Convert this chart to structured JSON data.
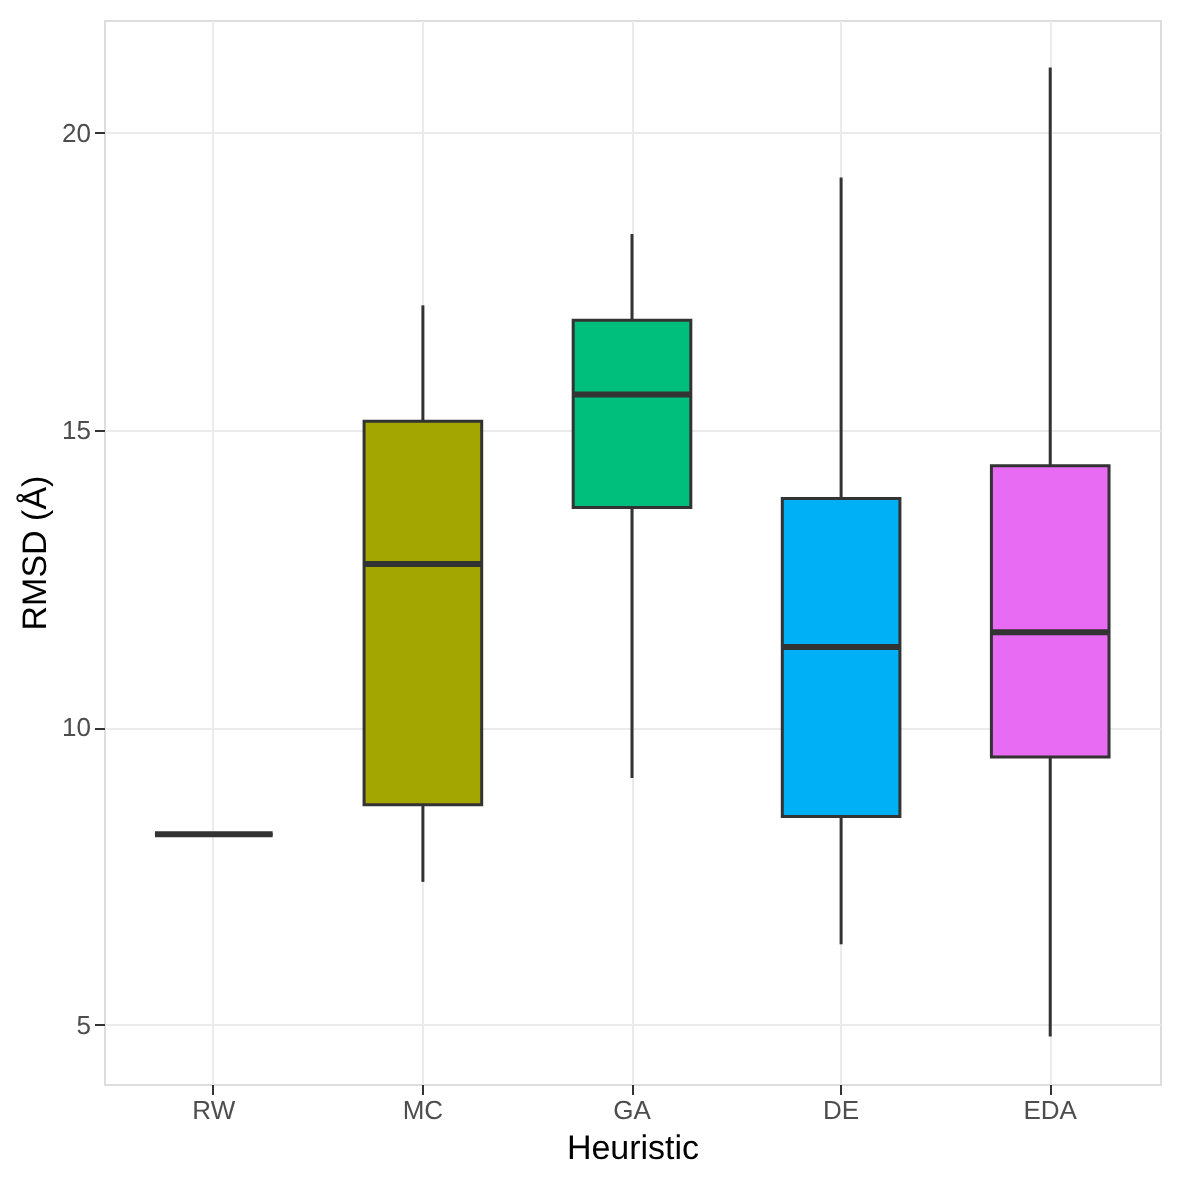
{
  "chart_data": {
    "type": "box",
    "xlabel": "Heuristic",
    "ylabel": "RMSD (Å)",
    "categories": [
      "RW",
      "MC",
      "GA",
      "DE",
      "EDA"
    ],
    "colors": [
      "#333333",
      "#a3a500",
      "#00bf7d",
      "#00b0f6",
      "#e76bf3"
    ],
    "boxes": [
      {
        "low": 8.2,
        "q1": 8.2,
        "median": 8.2,
        "q3": 8.2,
        "high": 8.2
      },
      {
        "low": 7.4,
        "q1": 8.7,
        "median": 12.75,
        "q3": 15.15,
        "high": 17.1
      },
      {
        "low": 9.15,
        "q1": 13.7,
        "median": 15.6,
        "q3": 16.85,
        "high": 18.3
      },
      {
        "low": 6.35,
        "q1": 8.5,
        "median": 11.35,
        "q3": 13.85,
        "high": 19.25
      },
      {
        "low": 4.8,
        "q1": 9.5,
        "median": 11.6,
        "q3": 14.4,
        "high": 21.1
      }
    ],
    "ylim": [
      4.0,
      21.9
    ],
    "yticks": [
      5,
      10,
      15,
      20
    ],
    "grid": true
  }
}
